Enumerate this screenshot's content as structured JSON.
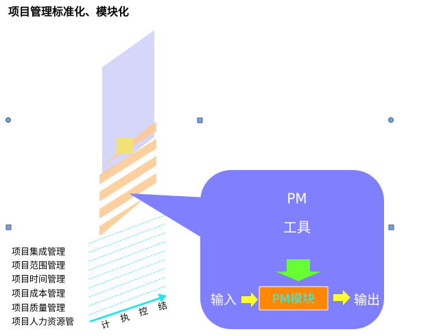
{
  "header": {
    "title": "项目管理标准化、模块化"
  },
  "list": {
    "items": [
      "项目集成管理",
      "项目范围管理",
      "项目时间管理",
      "项目成本管理",
      "项目质量管理",
      "项目人力资源管"
    ]
  },
  "phases": {
    "labels": [
      "计",
      "执",
      "控",
      "结"
    ]
  },
  "callout": {
    "line1": "PM",
    "line2": "工具",
    "input": "输入",
    "module": "PM模块",
    "output": "输出"
  }
}
